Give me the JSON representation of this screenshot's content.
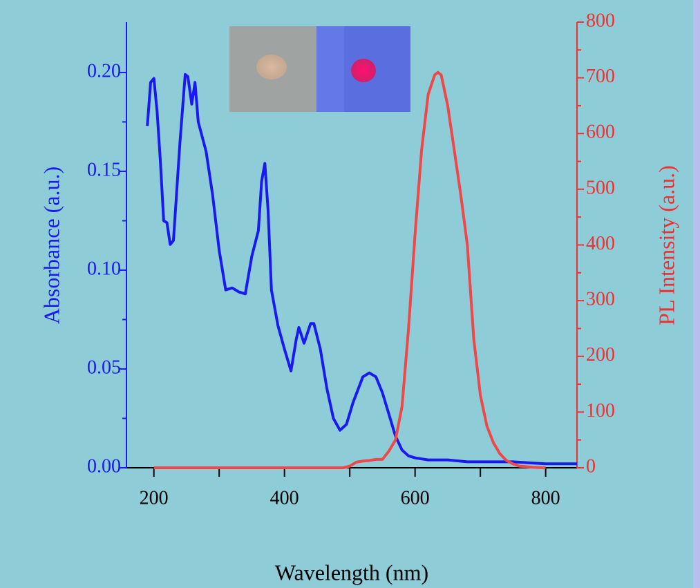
{
  "chart_data": {
    "type": "line",
    "xlabel": "Wavelength (nm)",
    "ylabel": "Absorbance (a.u.)",
    "y2label": "PL Intensity (a.u.)",
    "xlim": [
      158,
      848
    ],
    "xticks": [
      200,
      400,
      600,
      800
    ],
    "xminorticks": [
      300,
      500,
      700
    ],
    "ylim": [
      0,
      0.2255
    ],
    "yticks": [
      {
        "value": 0,
        "label": "0.00"
      },
      0.05,
      {
        "value": 0.1,
        "label": "0.10"
      },
      0.15,
      {
        "value": 0.2,
        "label": "0.20"
      }
    ],
    "yminorticks": [
      0.025,
      0.075,
      0.125,
      0.175
    ],
    "y2lim": [
      0,
      800
    ],
    "y2ticks": [
      0,
      100,
      200,
      300,
      400,
      500,
      600,
      700,
      800
    ],
    "y2minorticks": [
      50,
      150,
      250,
      350,
      450,
      550,
      650,
      750
    ],
    "ycolor": "#1a1af0",
    "y2color": "#f03030",
    "series": [
      {
        "color": "#1a1af0",
        "axis": "y",
        "x": [
          190,
          195,
          200,
          205,
          210,
          215,
          220,
          225,
          230,
          240,
          248,
          252,
          258,
          263,
          268,
          280,
          290,
          300,
          310,
          320,
          330,
          340,
          350,
          360,
          365,
          370,
          375,
          380,
          390,
          400,
          410,
          418,
          422,
          430,
          440,
          445,
          455,
          465,
          475,
          485,
          495,
          505,
          520,
          530,
          540,
          550,
          560,
          570,
          580,
          590,
          600,
          620,
          650,
          680,
          750,
          800,
          848
        ],
        "values": [
          0.173,
          0.195,
          0.197,
          0.18,
          0.155,
          0.125,
          0.124,
          0.113,
          0.115,
          0.165,
          0.199,
          0.198,
          0.184,
          0.195,
          0.175,
          0.16,
          0.138,
          0.11,
          0.09,
          0.091,
          0.089,
          0.088,
          0.107,
          0.12,
          0.145,
          0.154,
          0.13,
          0.09,
          0.072,
          0.06,
          0.049,
          0.065,
          0.071,
          0.063,
          0.073,
          0.073,
          0.06,
          0.04,
          0.025,
          0.019,
          0.022,
          0.033,
          0.046,
          0.048,
          0.046,
          0.038,
          0.027,
          0.016,
          0.009,
          0.006,
          0.005,
          0.004,
          0.004,
          0.003,
          0.003,
          0.002,
          0.002
        ]
      },
      {
        "color": "#ee4848",
        "axis": "y2",
        "x": [
          200,
          300,
          400,
          490,
          500,
          510,
          520,
          530,
          540,
          550,
          560,
          570,
          580,
          590,
          600,
          610,
          620,
          630,
          635,
          640,
          650,
          660,
          670,
          680,
          690,
          700,
          710,
          720,
          730,
          740,
          750,
          760,
          780,
          800
        ],
        "values": [
          0,
          0,
          0,
          0,
          3,
          10,
          12,
          13,
          15,
          15,
          30,
          50,
          110,
          250,
          420,
          570,
          670,
          705,
          710,
          705,
          650,
          570,
          490,
          400,
          230,
          130,
          75,
          45,
          25,
          13,
          7,
          3,
          1,
          0
        ]
      }
    ]
  }
}
